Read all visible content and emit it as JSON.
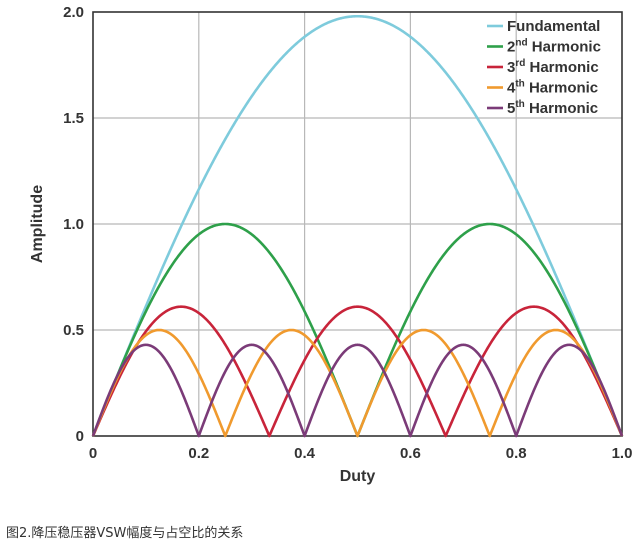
{
  "chart_data": {
    "type": "line",
    "xlabel": "Duty",
    "ylabel": "Amplitude",
    "xlim": [
      0,
      1
    ],
    "ylim": [
      0,
      2
    ],
    "x_ticks": [
      "0",
      "0.2",
      "0.4",
      "0.6",
      "0.8",
      "1.0"
    ],
    "y_ticks": [
      "0",
      "0.5",
      "1.0",
      "1.5",
      "2.0"
    ],
    "grid": true,
    "legend_position": "top-right",
    "series": [
      {
        "name": "Fundamental",
        "harmonic": 1,
        "sup": "",
        "color": "#7ecbdc",
        "x": [
          0,
          0.1,
          0.2,
          0.3,
          0.4,
          0.5,
          0.6,
          0.7,
          0.8,
          0.9,
          1.0
        ],
        "y": [
          0,
          0.61,
          1.17,
          1.61,
          1.89,
          1.98,
          1.89,
          1.61,
          1.17,
          0.61,
          0
        ]
      },
      {
        "name": "Harmonic",
        "harmonic": 2,
        "sup": "nd",
        "color": "#2ea04a",
        "x": [
          0,
          0.1,
          0.2,
          0.25,
          0.3,
          0.4,
          0.5,
          0.6,
          0.7,
          0.75,
          0.8,
          0.9,
          1.0
        ],
        "y": [
          0,
          0.59,
          0.95,
          1.0,
          0.95,
          0.59,
          0,
          0.59,
          0.95,
          1.0,
          0.95,
          0.59,
          0
        ]
      },
      {
        "name": "Harmonic",
        "harmonic": 3,
        "sup": "rd",
        "color": "#c8243a",
        "x": [
          0,
          0.1,
          0.1667,
          0.2,
          0.3,
          0.3333,
          0.4,
          0.5,
          0.6,
          0.6667,
          0.7,
          0.8,
          0.8333,
          0.9,
          1.0
        ],
        "y": [
          0,
          0.52,
          0.61,
          0.58,
          0.2,
          0,
          0.38,
          0.61,
          0.38,
          0,
          0.2,
          0.58,
          0.61,
          0.52,
          0
        ]
      },
      {
        "name": "Harmonic",
        "harmonic": 4,
        "sup": "th",
        "color": "#f09a2e",
        "x": [
          0,
          0.125,
          0.25,
          0.375,
          0.5,
          0.625,
          0.75,
          0.875,
          1.0
        ],
        "y": [
          0,
          0.5,
          0,
          0.5,
          0,
          0.5,
          0,
          0.5,
          0
        ]
      },
      {
        "name": "Harmonic",
        "harmonic": 5,
        "sup": "th",
        "color": "#7b3b78",
        "x": [
          0,
          0.1,
          0.2,
          0.3,
          0.4,
          0.5,
          0.6,
          0.7,
          0.8,
          0.9,
          1.0
        ],
        "y": [
          0,
          0.43,
          0,
          0.43,
          0,
          0.43,
          0,
          0.43,
          0,
          0.43,
          0
        ]
      }
    ]
  },
  "caption": "图2.降压稳压器VSW幅度与占空比的关系",
  "colors": {
    "grid": "#b8b8b8",
    "axis": "#333333"
  }
}
